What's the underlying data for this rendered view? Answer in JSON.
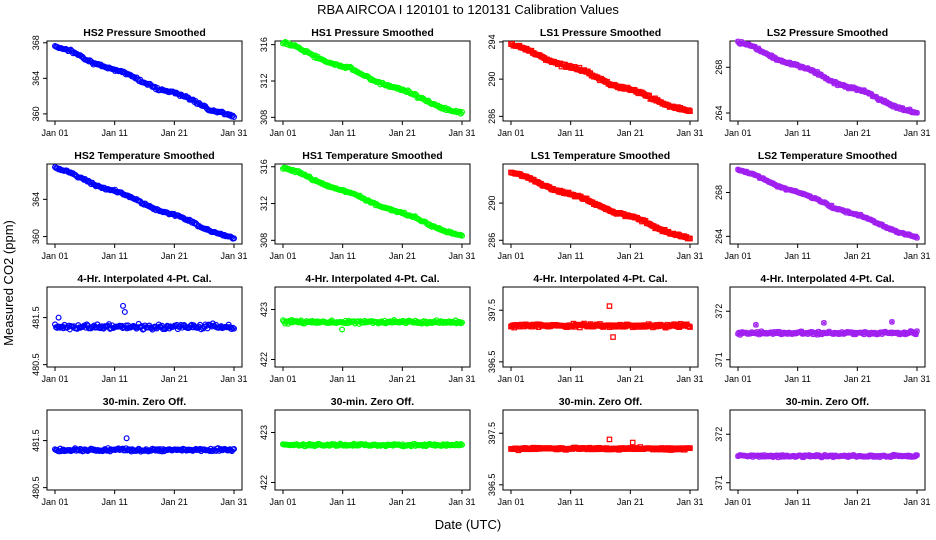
{
  "figure": {
    "title": "RBA   AIRCOA I   120101 to 120131   Calibration Values",
    "ylabel": "Measured CO2 (ppm)",
    "xlabel": "Date (UTC)"
  },
  "chart_data": [
    {
      "type": "scatter",
      "row": 0,
      "col": 0,
      "title": "HS2 Pressure Smoothed",
      "color": "#0000ff",
      "marker": "o",
      "trend": "linear",
      "y_start": 367.6,
      "y_end": 359.6,
      "noise": 0.25,
      "ylim": [
        359.2,
        368.2
      ],
      "yticks": [
        360,
        364,
        368
      ],
      "xticks": [
        "Jan 01",
        "Jan 11",
        "Jan 21",
        "Jan 31"
      ]
    },
    {
      "type": "scatter",
      "row": 0,
      "col": 1,
      "title": "HS1 Pressure Smoothed",
      "color": "#00ff00",
      "marker": "o",
      "trend": "linear",
      "y_start": 316.2,
      "y_end": 308.3,
      "noise": 0.25,
      "ylim": [
        307.6,
        316.4
      ],
      "yticks": [
        308,
        312,
        316
      ],
      "xticks": [
        "Jan 01",
        "Jan 11",
        "Jan 21",
        "Jan 31"
      ]
    },
    {
      "type": "scatter",
      "row": 0,
      "col": 2,
      "title": "LS1 Pressure Smoothed",
      "color": "#ff0000",
      "marker": "s",
      "trend": "linear",
      "y_start": 293.7,
      "y_end": 286.4,
      "noise": 0.25,
      "ylim": [
        285.5,
        294.1
      ],
      "yticks": [
        286,
        290,
        294
      ],
      "xticks": [
        "Jan 01",
        "Jan 11",
        "Jan 21",
        "Jan 31"
      ]
    },
    {
      "type": "scatter",
      "row": 0,
      "col": 3,
      "title": "LS2 Pressure Smoothed",
      "color": "#a020f0",
      "marker": "x",
      "trend": "linear",
      "y_start": 270.2,
      "y_end": 263.9,
      "noise": 0.2,
      "ylim": [
        263.3,
        270.3
      ],
      "yticks": [
        264,
        268
      ],
      "xticks": [
        "Jan 01",
        "Jan 11",
        "Jan 21",
        "Jan 31"
      ]
    },
    {
      "type": "scatter",
      "row": 1,
      "col": 0,
      "title": "HS2 Temperature Smoothed",
      "color": "#0000ff",
      "marker": "o",
      "trend": "linear",
      "y_start": 367.4,
      "y_end": 359.7,
      "noise": 0.2,
      "ylim": [
        359.2,
        367.8
      ],
      "yticks": [
        360,
        364
      ],
      "xticks": [
        "Jan 01",
        "Jan 11",
        "Jan 21",
        "Jan 31"
      ]
    },
    {
      "type": "scatter",
      "row": 1,
      "col": 1,
      "title": "HS1 Temperature Smoothed",
      "color": "#00ff00",
      "marker": "o",
      "trend": "linear",
      "y_start": 315.9,
      "y_end": 308.4,
      "noise": 0.2,
      "ylim": [
        307.6,
        316.3
      ],
      "yticks": [
        308,
        312,
        316
      ],
      "xticks": [
        "Jan 01",
        "Jan 11",
        "Jan 21",
        "Jan 31"
      ]
    },
    {
      "type": "scatter",
      "row": 1,
      "col": 2,
      "title": "LS1 Temperature Smoothed",
      "color": "#ff0000",
      "marker": "s",
      "trend": "linear",
      "y_start": 293.3,
      "y_end": 286.1,
      "noise": 0.2,
      "ylim": [
        285.6,
        294.2
      ],
      "yticks": [
        286,
        290
      ],
      "xticks": [
        "Jan 01",
        "Jan 11",
        "Jan 21",
        "Jan 31"
      ]
    },
    {
      "type": "scatter",
      "row": 1,
      "col": 3,
      "title": "LS2 Temperature Smoothed",
      "color": "#a020f0",
      "marker": "x",
      "trend": "linear",
      "y_start": 270.1,
      "y_end": 263.8,
      "noise": 0.15,
      "ylim": [
        263.3,
        270.6
      ],
      "yticks": [
        264,
        268
      ],
      "xticks": [
        "Jan 01",
        "Jan 11",
        "Jan 21",
        "Jan 31"
      ]
    },
    {
      "type": "scatter",
      "row": 2,
      "col": 0,
      "title": "4-Hr. Interpolated 4-Pt. Cal.",
      "color": "#0000ff",
      "marker": "o",
      "trend": "flat",
      "y_mean": 481.3,
      "noise": 0.06,
      "ylim": [
        480.45,
        482.15
      ],
      "yticks": [
        480.5,
        481.5
      ],
      "outliers": [
        [
          0.38,
          481.75
        ],
        [
          0.39,
          481.62
        ],
        [
          0.02,
          481.5
        ]
      ],
      "xticks": [
        "Jan 01",
        "Jan 11",
        "Jan 21",
        "Jan 31"
      ]
    },
    {
      "type": "scatter",
      "row": 2,
      "col": 1,
      "title": "4-Hr. Interpolated 4-Pt. Cal.",
      "color": "#00ff00",
      "marker": "o",
      "trend": "flat",
      "y_mean": 422.75,
      "noise": 0.035,
      "ylim": [
        421.85,
        423.45
      ],
      "yticks": [
        422.0,
        423.0
      ],
      "outliers": [
        [
          0.33,
          422.6
        ]
      ],
      "xticks": [
        "Jan 01",
        "Jan 11",
        "Jan 21",
        "Jan 31"
      ]
    },
    {
      "type": "scatter",
      "row": 2,
      "col": 2,
      "title": "4-Hr. Interpolated 4-Pt. Cal.",
      "color": "#ff0000",
      "marker": "s",
      "trend": "flat",
      "y_mean": 397.2,
      "noise": 0.035,
      "ylim": [
        396.4,
        397.95
      ],
      "yticks": [
        396.5,
        397.5
      ],
      "outliers": [
        [
          0.55,
          397.58
        ],
        [
          0.57,
          396.98
        ]
      ],
      "xticks": [
        "Jan 01",
        "Jan 11",
        "Jan 21",
        "Jan 31"
      ]
    },
    {
      "type": "scatter",
      "row": 2,
      "col": 3,
      "title": "4-Hr. Interpolated 4-Pt. Cal.",
      "color": "#a020f0",
      "marker": "x",
      "trend": "flat",
      "y_mean": 371.55,
      "noise": 0.035,
      "ylim": [
        370.85,
        372.5
      ],
      "yticks": [
        371.0,
        372.0
      ],
      "outliers": [
        [
          0.1,
          371.72
        ],
        [
          0.48,
          371.76
        ],
        [
          0.86,
          371.78
        ]
      ],
      "xticks": [
        "Jan 01",
        "Jan 11",
        "Jan 21",
        "Jan 31"
      ]
    },
    {
      "type": "scatter",
      "row": 3,
      "col": 0,
      "title": "30-min. Zero Off.",
      "color": "#0000ff",
      "marker": "o",
      "trend": "flat",
      "y_mean": 481.3,
      "noise": 0.035,
      "ylim": [
        480.45,
        482.15
      ],
      "yticks": [
        480.5,
        481.5
      ],
      "outliers": [
        [
          0.4,
          481.55
        ]
      ],
      "xticks": [
        "Jan 01",
        "Jan 11",
        "Jan 21",
        "Jan 31"
      ]
    },
    {
      "type": "scatter",
      "row": 3,
      "col": 1,
      "title": "30-min. Zero Off.",
      "color": "#00ff00",
      "marker": "o",
      "trend": "flat",
      "y_mean": 422.75,
      "noise": 0.025,
      "ylim": [
        421.85,
        423.45
      ],
      "yticks": [
        422.0,
        423.0
      ],
      "outliers": [],
      "xticks": [
        "Jan 01",
        "Jan 11",
        "Jan 21",
        "Jan 31"
      ]
    },
    {
      "type": "scatter",
      "row": 3,
      "col": 2,
      "title": "30-min. Zero Off.",
      "color": "#ff0000",
      "marker": "s",
      "trend": "flat",
      "y_mean": 397.2,
      "noise": 0.025,
      "ylim": [
        396.4,
        397.95
      ],
      "yticks": [
        396.5,
        397.5
      ],
      "outliers": [
        [
          0.55,
          397.38
        ],
        [
          0.68,
          397.32
        ]
      ],
      "xticks": [
        "Jan 01",
        "Jan 11",
        "Jan 21",
        "Jan 31"
      ]
    },
    {
      "type": "scatter",
      "row": 3,
      "col": 3,
      "title": "30-min. Zero Off.",
      "color": "#a020f0",
      "marker": "x",
      "trend": "flat",
      "y_mean": 371.55,
      "noise": 0.025,
      "ylim": [
        370.85,
        372.5
      ],
      "yticks": [
        371.0,
        372.0
      ],
      "outliers": [],
      "xticks": [
        "Jan 01",
        "Jan 11",
        "Jan 21",
        "Jan 31"
      ]
    }
  ]
}
